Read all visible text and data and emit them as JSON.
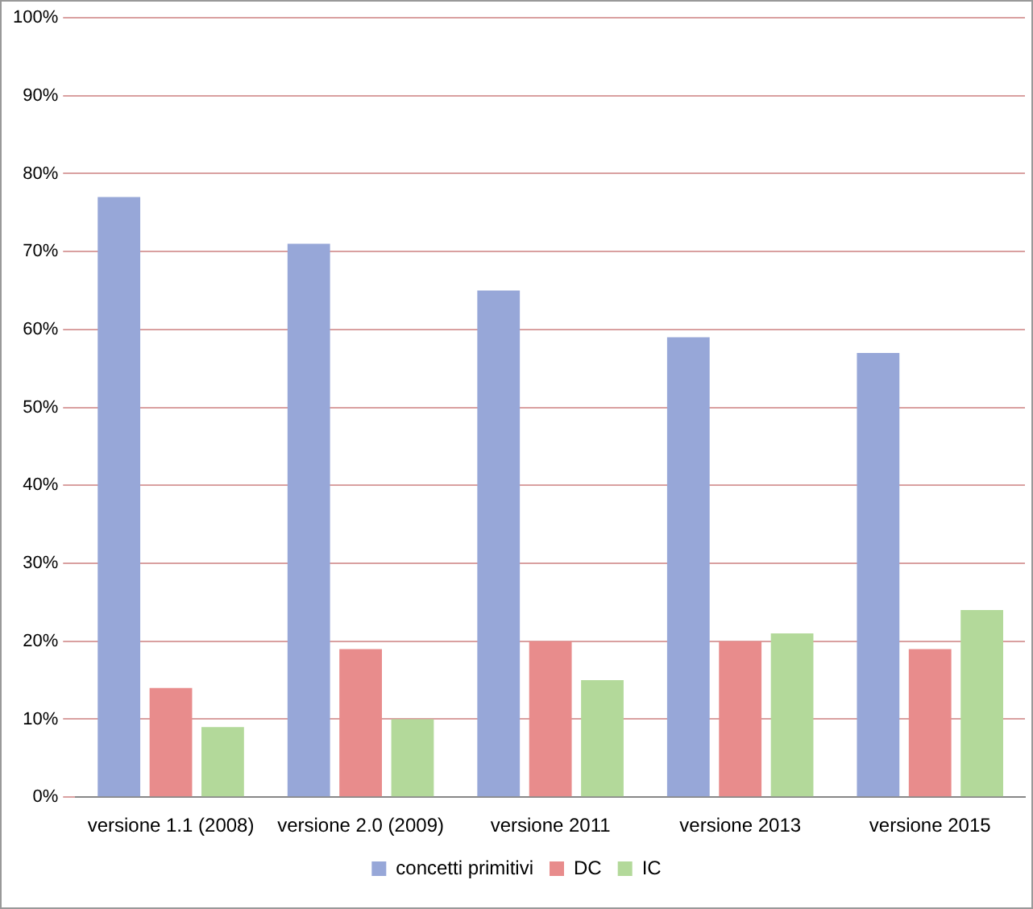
{
  "chart_data": {
    "type": "bar",
    "categories": [
      "versione 1.1 (2008)",
      "versione 2.0 (2009)",
      "versione 2011",
      "versione 2013",
      "versione 2015"
    ],
    "series": [
      {
        "name": "concetti primitivi",
        "color": "#97a7d8",
        "values": [
          77,
          71,
          65,
          59,
          57
        ]
      },
      {
        "name": "DC",
        "color": "#e88c8c",
        "values": [
          14,
          19,
          20,
          20,
          19
        ]
      },
      {
        "name": "IC",
        "color": "#b3d99a",
        "values": [
          9,
          10,
          15,
          21,
          24
        ]
      }
    ],
    "ylim": [
      0,
      100
    ],
    "yticks": [
      {
        "value": 0,
        "label": "0%"
      },
      {
        "value": 10,
        "label": "10%"
      },
      {
        "value": 20,
        "label": "20%"
      },
      {
        "value": 30,
        "label": "30%"
      },
      {
        "value": 40,
        "label": "40%"
      },
      {
        "value": 50,
        "label": "50%"
      },
      {
        "value": 60,
        "label": "60%"
      },
      {
        "value": 70,
        "label": "70%"
      },
      {
        "value": 80,
        "label": "80%"
      },
      {
        "value": 90,
        "label": "90%"
      },
      {
        "value": 100,
        "label": "100%"
      }
    ],
    "grid": "y",
    "legend": "bottom"
  }
}
